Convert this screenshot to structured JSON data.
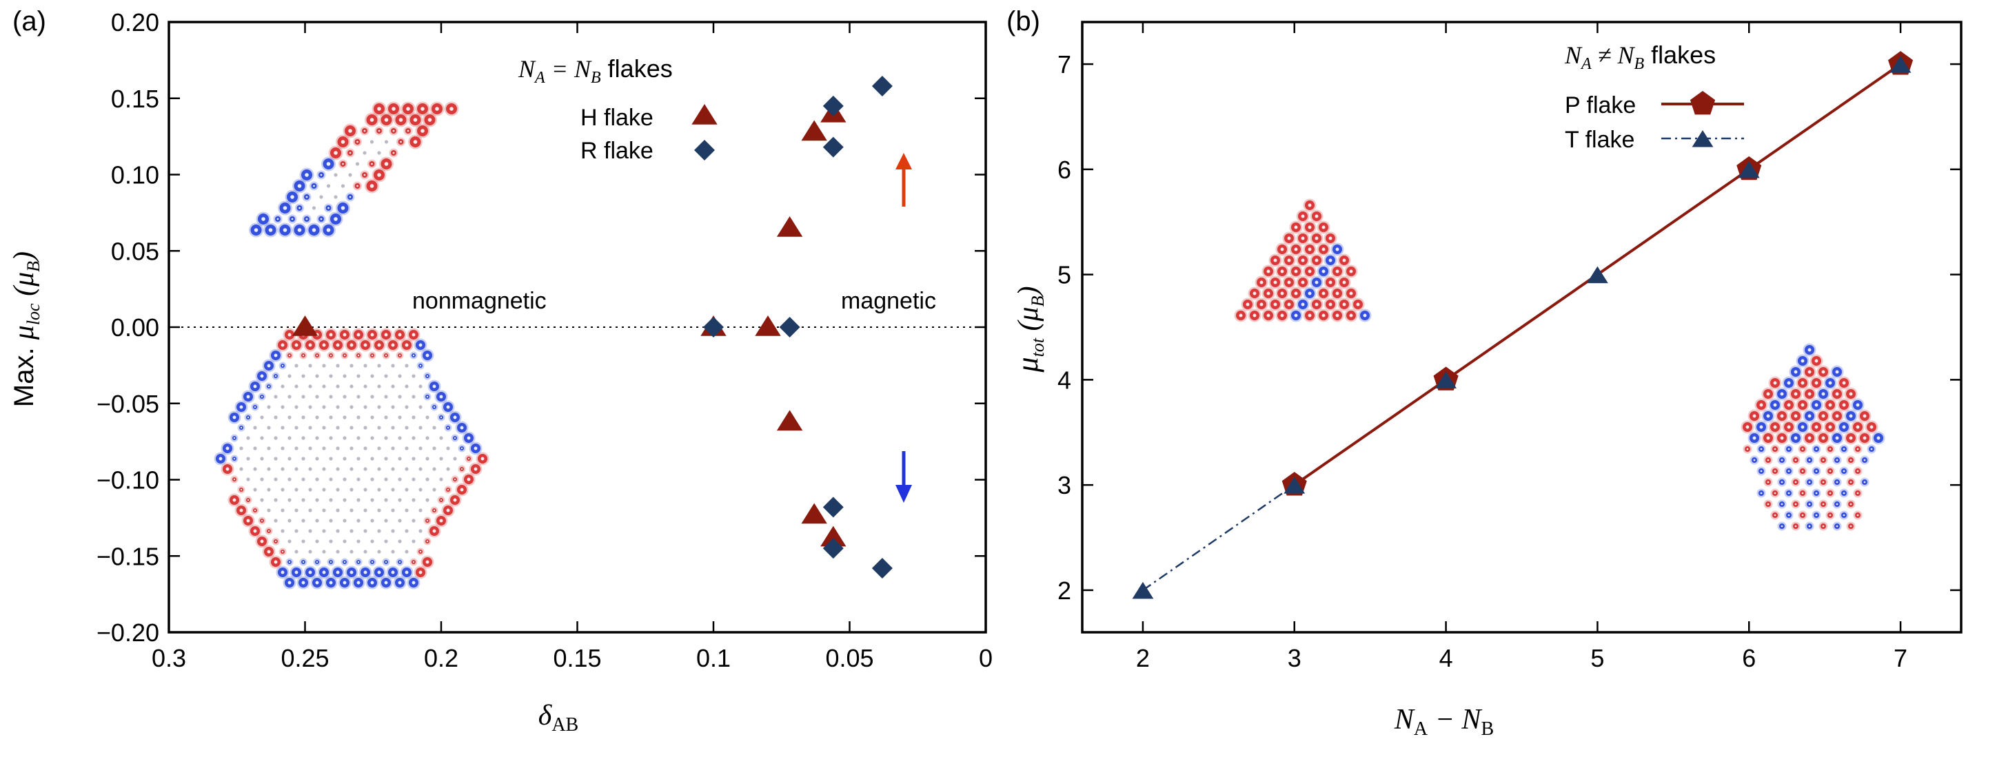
{
  "chart_data": [
    {
      "panel_label": "(a)",
      "type": "scatter",
      "xlabel_main": "δ",
      "xlabel_sub": "AB",
      "ylabel_prefix": "Max. ",
      "ylabel_mu": "μ",
      "ylabel_sub": "loc",
      "ylabel_unit_open": " (μ",
      "ylabel_unit_sub": "B",
      "ylabel_unit_close": ")",
      "xlim": [
        0.3,
        0
      ],
      "ylim": [
        -0.2,
        0.2
      ],
      "xticks": [
        0.3,
        0.25,
        0.2,
        0.15,
        0.1,
        0.05,
        0
      ],
      "xtick_labels": [
        "0.3",
        "0.25",
        "0.2",
        "0.15",
        "0.1",
        "0.05",
        "0"
      ],
      "yticks": [
        0.2,
        0.15,
        0.1,
        0.05,
        0,
        -0.05,
        -0.1,
        -0.15,
        -0.2
      ],
      "ytick_labels": [
        "0.20",
        "0.15",
        "0.10",
        "0.05",
        "0.00",
        "−0.05",
        "−0.10",
        "−0.15",
        "−0.20"
      ],
      "legend_title_parts": [
        "N",
        "A",
        " = N",
        "B",
        " flakes"
      ],
      "series": [
        {
          "name": "H flake",
          "marker": "triangle",
          "color": "#8b1a0e",
          "points": [
            [
              0.25,
              0.0
            ],
            [
              0.1,
              0.0
            ],
            [
              0.08,
              0.0
            ],
            [
              0.072,
              0.065
            ],
            [
              0.072,
              -0.062
            ],
            [
              0.063,
              0.128
            ],
            [
              0.063,
              -0.123
            ],
            [
              0.056,
              0.14
            ],
            [
              0.056,
              -0.138
            ]
          ]
        },
        {
          "name": "R flake",
          "marker": "diamond",
          "color": "#1f3a63",
          "points": [
            [
              0.1,
              0.0
            ],
            [
              0.072,
              0.0
            ],
            [
              0.056,
              0.145
            ],
            [
              0.056,
              0.118
            ],
            [
              0.056,
              -0.118
            ],
            [
              0.056,
              -0.145
            ],
            [
              0.038,
              0.158
            ],
            [
              0.038,
              -0.158
            ]
          ]
        }
      ],
      "annotations": [
        "nonmagnetic",
        "magnetic"
      ],
      "arrow_up_color": "#e03a10",
      "arrow_down_color": "#2233dd"
    },
    {
      "panel_label": "(b)",
      "type": "line",
      "xlabel_parts": [
        "N",
        "A",
        " − N",
        "B"
      ],
      "ylabel_mu": "μ",
      "ylabel_sub": "tot",
      "ylabel_unit_open": " (μ",
      "ylabel_unit_sub": "B",
      "ylabel_unit_close": ")",
      "xlim": [
        1.6,
        7.4
      ],
      "ylim": [
        1.6,
        7.4
      ],
      "xticks": [
        2,
        3,
        4,
        5,
        6,
        7
      ],
      "xtick_labels": [
        "2",
        "3",
        "4",
        "5",
        "6",
        "7"
      ],
      "yticks": [
        2,
        3,
        4,
        5,
        6,
        7
      ],
      "ytick_labels": [
        "2",
        "3",
        "4",
        "5",
        "6",
        "7"
      ],
      "legend_title_parts": [
        "N",
        "A",
        " ≠ N",
        "B",
        " flakes"
      ],
      "series": [
        {
          "name": "P flake",
          "marker": "pentagon",
          "style": "solid",
          "color": "#8b1a0e",
          "x": [
            3,
            4,
            6,
            7
          ],
          "y": [
            3,
            4,
            6,
            7
          ]
        },
        {
          "name": "T flake",
          "marker": "triangle",
          "style": "dash-dot",
          "color": "#1f3a63",
          "x": [
            2,
            3,
            4,
            5,
            6,
            7
          ],
          "y": [
            2,
            3,
            4,
            5,
            6,
            7
          ]
        }
      ]
    }
  ],
  "colors": {
    "spin_up": "#d42020",
    "spin_down": "#1a3ad8",
    "lattice": "#b9b9c4"
  }
}
